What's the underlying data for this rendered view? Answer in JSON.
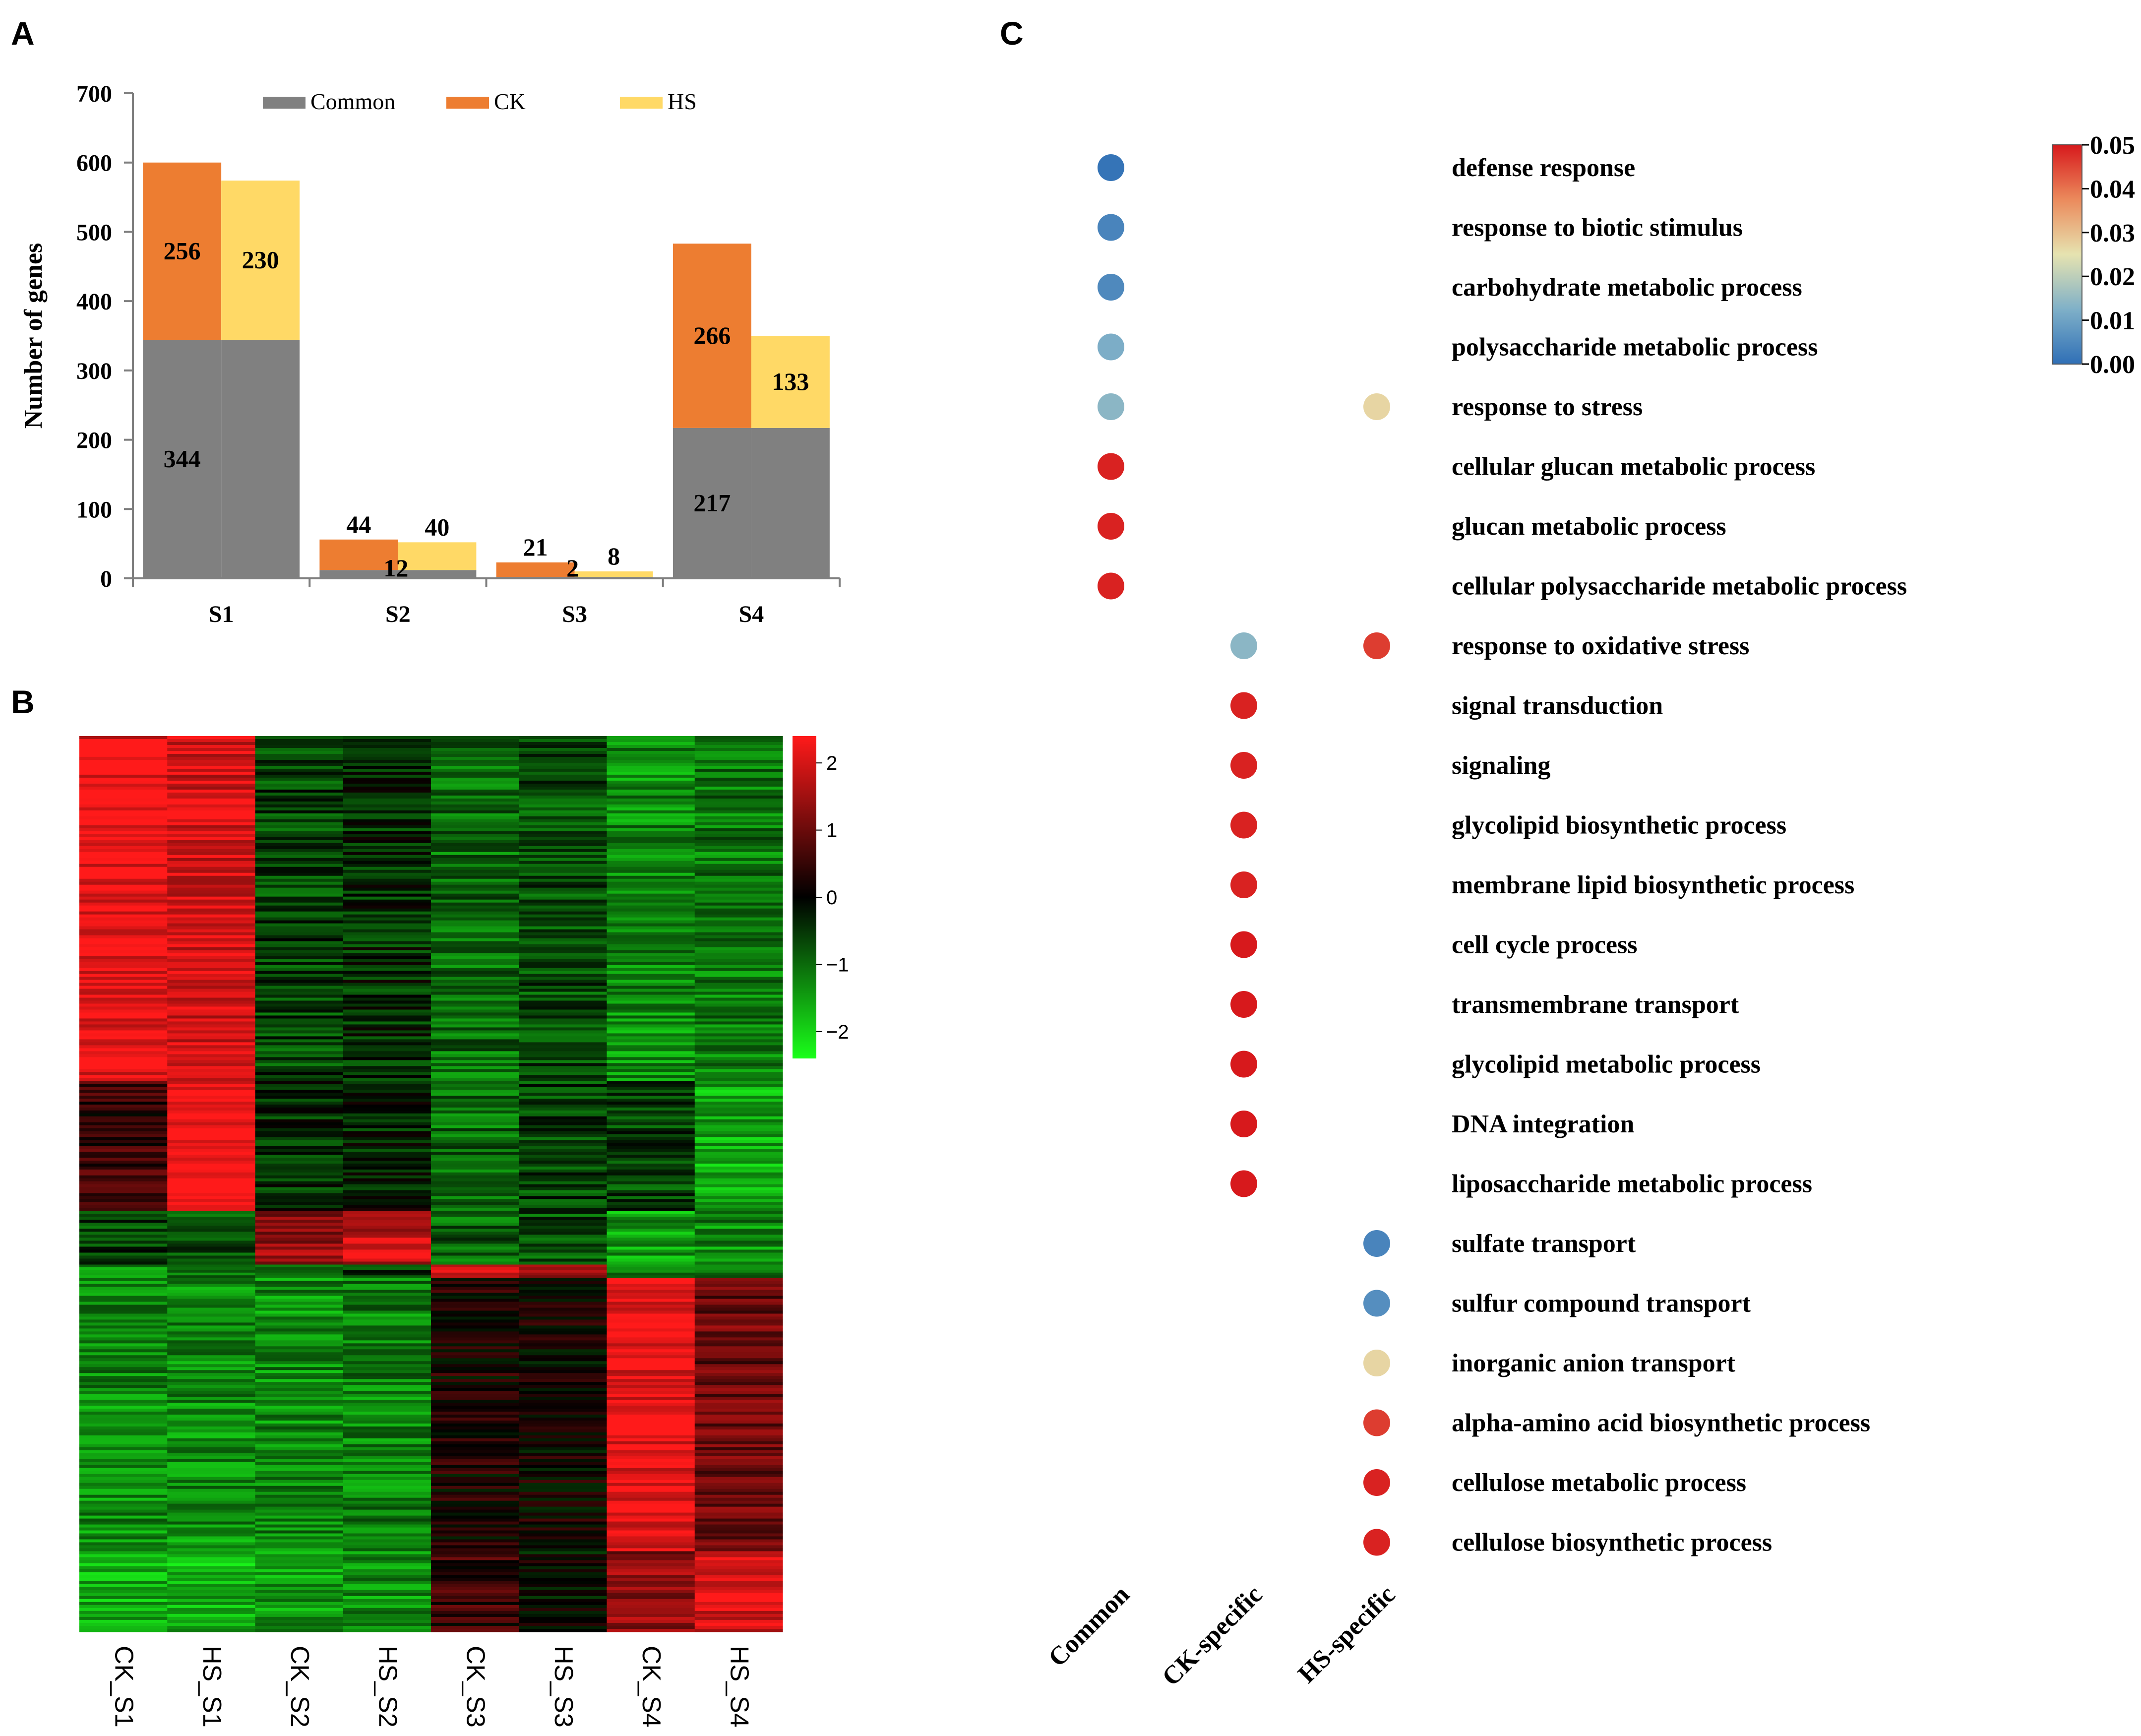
{
  "panels": {
    "a": {
      "label": "A"
    },
    "b": {
      "label": "B"
    },
    "c": {
      "label": "C"
    }
  },
  "colors": {
    "common": "#808080",
    "ck": "#ED7D31",
    "hs": "#FFD966",
    "heat_high": "#FF1A1A",
    "heat_mid": "#000000",
    "heat_low": "#1AFF1A",
    "dot_low": "#2F6FB6",
    "dot_mid": "#E6E3B0",
    "dot_high": "#D7191C"
  },
  "chart_data": [
    {
      "id": "A",
      "type": "bar",
      "stacked": true,
      "title": "",
      "xlabel": "",
      "ylabel": "Number of genes",
      "ylim": [
        0,
        700
      ],
      "yticks": [
        0,
        100,
        200,
        300,
        400,
        500,
        600,
        700
      ],
      "categories": [
        "S1",
        "S2",
        "S3",
        "S4"
      ],
      "legend": [
        "Common",
        "CK",
        "HS"
      ],
      "bars": [
        {
          "category": "S1",
          "group": "CK",
          "common": 344,
          "specific": 256,
          "common_label": "344",
          "specific_label": "256"
        },
        {
          "category": "S1",
          "group": "HS",
          "common": 344,
          "specific": 230,
          "common_label": "",
          "specific_label": "230"
        },
        {
          "category": "S2",
          "group": "CK",
          "common": 12,
          "specific": 44,
          "common_label": "12",
          "specific_label": "44"
        },
        {
          "category": "S2",
          "group": "HS",
          "common": 12,
          "specific": 40,
          "common_label": "",
          "specific_label": "40"
        },
        {
          "category": "S3",
          "group": "CK",
          "common": 2,
          "specific": 21,
          "common_label": "2",
          "specific_label": "21"
        },
        {
          "category": "S3",
          "group": "HS",
          "common": 2,
          "specific": 8,
          "common_label": "",
          "specific_label": "8"
        },
        {
          "category": "S4",
          "group": "CK",
          "common": 217,
          "specific": 266,
          "common_label": "217",
          "specific_label": "266"
        },
        {
          "category": "S4",
          "group": "HS",
          "common": 217,
          "specific": 133,
          "common_label": "",
          "specific_label": "133"
        }
      ]
    },
    {
      "id": "B",
      "type": "heatmap",
      "title": "",
      "columns": [
        "CK_S1",
        "HS_S1",
        "CK_S2",
        "HS_S2",
        "CK_S3",
        "HS_S3",
        "CK_S4",
        "HS_S4"
      ],
      "colorbar_range": [
        -2.4,
        2.4
      ],
      "colorbar_ticks": [
        2,
        1,
        0,
        -1,
        -2
      ],
      "colorbar_tick_labels": [
        "2",
        "1",
        "0",
        "−1",
        "−2"
      ],
      "clusters": [
        {
          "rows_fraction": 0.385,
          "values": [
            2.2,
            2.0,
            -0.6,
            -0.4,
            -1.0,
            -0.7,
            -1.3,
            -1.1
          ]
        },
        {
          "rows_fraction": 0.145,
          "values": [
            0.5,
            2.4,
            -0.4,
            -0.3,
            -1.0,
            -0.6,
            -0.6,
            -1.6
          ]
        },
        {
          "rows_fraction": 0.06,
          "values": [
            -0.6,
            -0.7,
            1.4,
            1.8,
            -0.9,
            -0.7,
            -1.5,
            -1.3
          ]
        },
        {
          "rows_fraction": 0.015,
          "values": [
            -1.2,
            -1.1,
            -0.9,
            -0.6,
            2.0,
            1.5,
            -1.0,
            -0.9
          ]
        },
        {
          "rows_fraction": 0.305,
          "values": [
            -1.3,
            -1.3,
            -1.3,
            -1.2,
            0.2,
            0.1,
            2.2,
            1.0
          ]
        },
        {
          "rows_fraction": 0.09,
          "values": [
            -1.6,
            -1.7,
            -1.4,
            -1.4,
            0.5,
            -0.1,
            1.3,
            2.0
          ]
        }
      ]
    },
    {
      "id": "C",
      "type": "scatter",
      "title": "",
      "columns": [
        "Common",
        "CK-specific",
        "HS-specific"
      ],
      "colorbar_range": [
        0,
        0.05
      ],
      "colorbar_ticks": [
        "0.05",
        "0.04",
        "0.03",
        "0.02",
        "0.01",
        "0.00"
      ],
      "terms": [
        {
          "term": "defense response",
          "points": [
            {
              "col": 0,
              "p": 0.001
            }
          ]
        },
        {
          "term": "response to biotic stimulus",
          "points": [
            {
              "col": 0,
              "p": 0.004
            }
          ]
        },
        {
          "term": "carbohydrate metabolic process",
          "points": [
            {
              "col": 0,
              "p": 0.005
            }
          ]
        },
        {
          "term": "polysaccharide metabolic process",
          "points": [
            {
              "col": 0,
              "p": 0.012
            }
          ]
        },
        {
          "term": "response to stress",
          "points": [
            {
              "col": 0,
              "p": 0.014
            },
            {
              "col": 2,
              "p": 0.027
            }
          ]
        },
        {
          "term": "cellular glucan metabolic process",
          "points": [
            {
              "col": 0,
              "p": 0.049
            }
          ]
        },
        {
          "term": "glucan metabolic process",
          "points": [
            {
              "col": 0,
              "p": 0.049
            }
          ]
        },
        {
          "term": "cellular polysaccharide metabolic process",
          "points": [
            {
              "col": 0,
              "p": 0.049
            }
          ]
        },
        {
          "term": "response to oxidative stress",
          "points": [
            {
              "col": 1,
              "p": 0.014
            },
            {
              "col": 2,
              "p": 0.046
            }
          ]
        },
        {
          "term": "signal transduction",
          "points": [
            {
              "col": 1,
              "p": 0.049
            }
          ]
        },
        {
          "term": "signaling",
          "points": [
            {
              "col": 1,
              "p": 0.049
            }
          ]
        },
        {
          "term": "glycolipid biosynthetic process",
          "points": [
            {
              "col": 1,
              "p": 0.049
            }
          ]
        },
        {
          "term": "membrane lipid biosynthetic process",
          "points": [
            {
              "col": 1,
              "p": 0.049
            }
          ]
        },
        {
          "term": "cell cycle process",
          "points": [
            {
              "col": 1,
              "p": 0.05
            }
          ]
        },
        {
          "term": "transmembrane transport",
          "points": [
            {
              "col": 1,
              "p": 0.05
            }
          ]
        },
        {
          "term": "glycolipid metabolic process",
          "points": [
            {
              "col": 1,
              "p": 0.05
            }
          ]
        },
        {
          "term": "DNA integration",
          "points": [
            {
              "col": 1,
              "p": 0.05
            }
          ]
        },
        {
          "term": "liposaccharide metabolic process",
          "points": [
            {
              "col": 1,
              "p": 0.05
            }
          ]
        },
        {
          "term": "sulfate transport",
          "points": [
            {
              "col": 2,
              "p": 0.004
            }
          ]
        },
        {
          "term": "sulfur compound transport",
          "points": [
            {
              "col": 2,
              "p": 0.006
            }
          ]
        },
        {
          "term": "inorganic anion transport",
          "points": [
            {
              "col": 2,
              "p": 0.027
            }
          ]
        },
        {
          "term": "alpha-amino acid biosynthetic process",
          "points": [
            {
              "col": 2,
              "p": 0.046
            }
          ]
        },
        {
          "term": "cellulose metabolic process",
          "points": [
            {
              "col": 2,
              "p": 0.049
            }
          ]
        },
        {
          "term": "cellulose biosynthetic process",
          "points": [
            {
              "col": 2,
              "p": 0.049
            }
          ]
        }
      ]
    }
  ]
}
